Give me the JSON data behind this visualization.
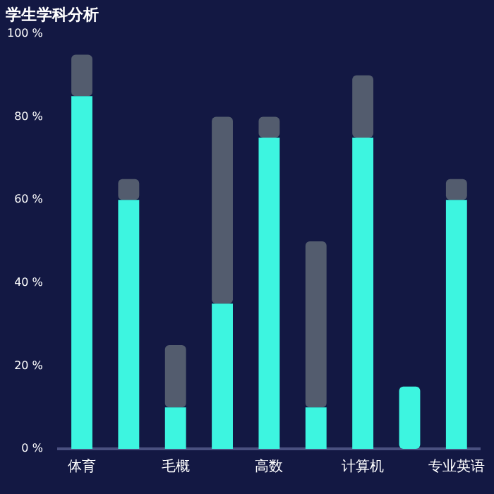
{
  "chart_data": {
    "type": "bar",
    "title": "学生学科分析",
    "categories": [
      "体育",
      null,
      "毛概",
      null,
      "高数",
      null,
      "计算机",
      null,
      "专业英语"
    ],
    "series": [
      {
        "color": "#3df5e0",
        "values": [
          85,
          60,
          10,
          35,
          75,
          10,
          75,
          15,
          60
        ]
      },
      {
        "color": "#535c6e",
        "values": [
          10,
          5,
          15,
          45,
          5,
          40,
          15,
          null,
          5
        ]
      }
    ],
    "stacked": true,
    "ylim": [
      0,
      100
    ],
    "yticks": [
      {
        "value": 0,
        "label": "0 %"
      },
      {
        "value": 20,
        "label": "20 %"
      },
      {
        "value": 40,
        "label": "40 %"
      },
      {
        "value": 60,
        "label": "60 %"
      },
      {
        "value": 80,
        "label": "80 %"
      },
      {
        "value": 100,
        "label": "100 %"
      }
    ],
    "grid": false,
    "legend": false
  }
}
